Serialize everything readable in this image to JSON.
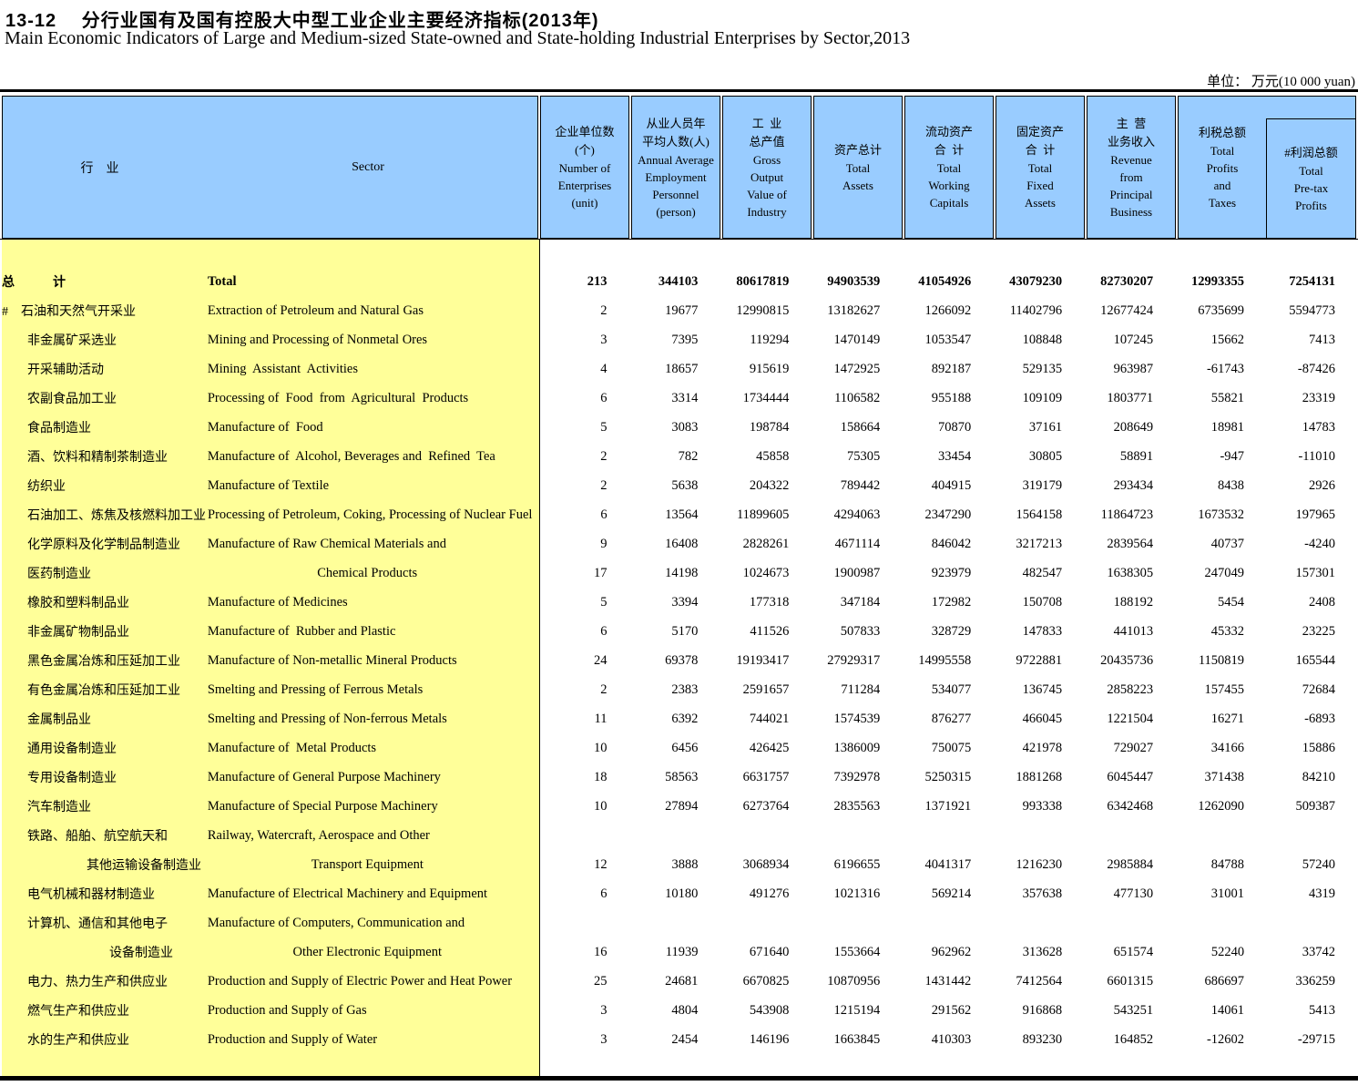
{
  "title": {
    "zh": "13-12　 分行业国有及国有控股大中型工业企业主要经济指标(2013年)",
    "en": "Main Economic Indicators of Large and Medium-sized State-owned and State-holding Industrial Enterprises by Sector,2013"
  },
  "unit_note": "单位： 万元(10 000 yuan)",
  "colors": {
    "header_bg": "#99CCFF",
    "sector_bg": "#FFFF99",
    "border": "#000000"
  },
  "header": {
    "sector": {
      "zh": "行　业",
      "en": "Sector"
    },
    "columns": [
      {
        "zh": [
          "企业单位数",
          "(个)"
        ],
        "en": [
          "Number of",
          "Enterprises",
          "(unit)"
        ]
      },
      {
        "zh": [
          "从业人员年",
          "平均人数(人)"
        ],
        "en": [
          "Annual Average",
          "Employment",
          "Personnel",
          "(person)"
        ]
      },
      {
        "zh": [
          "工  业",
          "总产值"
        ],
        "en": [
          "Gross",
          "Output",
          "Value of",
          "Industry"
        ]
      },
      {
        "zh": [
          "资产总计"
        ],
        "en": [
          "Total",
          "Assets"
        ]
      },
      {
        "zh": [
          "流动资产",
          "合  计"
        ],
        "en": [
          "Total",
          "Working",
          "Capitals"
        ]
      },
      {
        "zh": [
          "固定资产",
          "合  计"
        ],
        "en": [
          "Total",
          "Fixed",
          "Assets"
        ]
      },
      {
        "zh": [
          "主  营",
          "业务收入"
        ],
        "en": [
          "Revenue",
          "from",
          "Principal",
          "Business"
        ]
      },
      {
        "zh": [
          "利税总额"
        ],
        "en": [
          "Total",
          "Profits",
          "and",
          "Taxes"
        ]
      },
      {
        "zh": [
          "#利润总额"
        ],
        "en": [
          "Total",
          "Pre-tax",
          "Profits"
        ],
        "boxed": true
      }
    ]
  },
  "rows": [
    {
      "zh": "总　　　计",
      "en": "Total",
      "indent": 0,
      "bold": true,
      "values": [
        "213",
        "344103",
        "80617819",
        "94903539",
        "41054926",
        "43079230",
        "82730207",
        "12993355",
        "7254131"
      ]
    },
    {
      "zh": "#　石油和天然气开采业",
      "en": "Extraction of Petroleum and Natural Gas",
      "indent": 0,
      "values": [
        "2",
        "19677",
        "12990815",
        "13182627",
        "1266092",
        "11402796",
        "12677424",
        "6735699",
        "5594773"
      ]
    },
    {
      "zh": "非金属矿采选业",
      "en": "Mining and Processing of Nonmetal Ores",
      "indent": 1,
      "values": [
        "3",
        "7395",
        "119294",
        "1470149",
        "1053547",
        "108848",
        "107245",
        "15662",
        "7413"
      ]
    },
    {
      "zh": "开采辅助活动",
      "en": "Mining  Assistant  Activities",
      "indent": 1,
      "values": [
        "4",
        "18657",
        "915619",
        "1472925",
        "892187",
        "529135",
        "963987",
        "-61743",
        "-87426"
      ]
    },
    {
      "zh": "农副食品加工业",
      "en": "Processing of  Food  from  Agricultural  Products",
      "indent": 1,
      "values": [
        "6",
        "3314",
        "1734444",
        "1106582",
        "955188",
        "109109",
        "1803771",
        "55821",
        "23319"
      ]
    },
    {
      "zh": "食品制造业",
      "en": "Manufacture of  Food",
      "indent": 1,
      "values": [
        "5",
        "3083",
        "198784",
        "158664",
        "70870",
        "37161",
        "208649",
        "18981",
        "14783"
      ]
    },
    {
      "zh": "酒、饮料和精制茶制造业",
      "en": "Manufacture of  Alcohol, Beverages and  Refined  Tea",
      "indent": 1,
      "values": [
        "2",
        "782",
        "45858",
        "75305",
        "33454",
        "30805",
        "58891",
        "-947",
        "-11010"
      ]
    },
    {
      "zh": "纺织业",
      "en": "Manufacture of Textile",
      "indent": 1,
      "values": [
        "2",
        "5638",
        "204322",
        "789442",
        "404915",
        "319179",
        "293434",
        "8438",
        "2926"
      ]
    },
    {
      "zh": "石油加工、炼焦及核燃料加工业",
      "en": "Processing of Petroleum, Coking, Processing of Nuclear Fuel",
      "indent": 1,
      "values": [
        "6",
        "13564",
        "11899605",
        "4294063",
        "2347290",
        "1564158",
        "11864723",
        "1673532",
        "197965"
      ]
    },
    {
      "zh": "化学原料及化学制品制造业",
      "en": "Manufacture of Raw Chemical Materials and",
      "indent": 1,
      "values": [
        "9",
        "16408",
        "2828261",
        "4671114",
        "846042",
        "3217213",
        "2839564",
        "40737",
        "-4240"
      ]
    },
    {
      "zh": "医药制造业",
      "en": "Chemical Products",
      "indent": 1,
      "center_en": true,
      "values": [
        "17",
        "14198",
        "1024673",
        "1900987",
        "923979",
        "482547",
        "1638305",
        "247049",
        "157301"
      ]
    },
    {
      "zh": "橡胶和塑料制品业",
      "en": "Manufacture of Medicines",
      "indent": 1,
      "values": [
        "5",
        "3394",
        "177318",
        "347184",
        "172982",
        "150708",
        "188192",
        "5454",
        "2408"
      ]
    },
    {
      "zh": "非金属矿物制品业",
      "en": "Manufacture of  Rubber and Plastic",
      "indent": 1,
      "values": [
        "6",
        "5170",
        "411526",
        "507833",
        "328729",
        "147833",
        "441013",
        "45332",
        "23225"
      ]
    },
    {
      "zh": "黑色金属冶炼和压延加工业",
      "en": "Manufacture of Non-metallic Mineral Products",
      "indent": 1,
      "values": [
        "24",
        "69378",
        "19193417",
        "27929317",
        "14995558",
        "9722881",
        "20435736",
        "1150819",
        "165544"
      ]
    },
    {
      "zh": "有色金属冶炼和压延加工业",
      "en": "Smelting and Pressing of Ferrous Metals",
      "indent": 1,
      "values": [
        "2",
        "2383",
        "2591657",
        "711284",
        "534077",
        "136745",
        "2858223",
        "157455",
        "72684"
      ]
    },
    {
      "zh": "金属制品业",
      "en": "Smelting and Pressing of Non-ferrous Metals",
      "indent": 1,
      "values": [
        "11",
        "6392",
        "744021",
        "1574539",
        "876277",
        "466045",
        "1221504",
        "16271",
        "-6893"
      ]
    },
    {
      "zh": "通用设备制造业",
      "en": "Manufacture of  Metal Products",
      "indent": 1,
      "values": [
        "10",
        "6456",
        "426425",
        "1386009",
        "750075",
        "421978",
        "729027",
        "34166",
        "15886"
      ]
    },
    {
      "zh": "专用设备制造业",
      "en": "Manufacture of General Purpose Machinery",
      "indent": 1,
      "values": [
        "18",
        "58563",
        "6631757",
        "7392978",
        "5250315",
        "1881268",
        "6045447",
        "371438",
        "84210"
      ]
    },
    {
      "zh": "汽车制造业",
      "en": "Manufacture of Special Purpose Machinery",
      "indent": 1,
      "values": [
        "10",
        "27894",
        "6273764",
        "2835563",
        "1371921",
        "993338",
        "6342468",
        "1262090",
        "509387"
      ]
    },
    {
      "zh": "铁路、船舶、航空航天和",
      "en": "Railway, Watercraft, Aerospace and Other",
      "indent": 1,
      "values": null
    },
    {
      "zh": "其他运输设备制造业",
      "en": "Transport Equipment",
      "indent": 2,
      "center_en": true,
      "values": [
        "12",
        "3888",
        "3068934",
        "6196655",
        "4041317",
        "1216230",
        "2985884",
        "84788",
        "57240"
      ]
    },
    {
      "zh": "电气机械和器材制造业",
      "en": "Manufacture of Electrical Machinery and Equipment",
      "indent": 1,
      "values": [
        "6",
        "10180",
        "491276",
        "1021316",
        "569214",
        "357638",
        "477130",
        "31001",
        "4319"
      ]
    },
    {
      "zh": "计算机、通信和其他电子",
      "en": "Manufacture of Computers, Communication and",
      "indent": 1,
      "values": null
    },
    {
      "zh": "设备制造业",
      "en": "Other Electronic Equipment",
      "indent": 3,
      "center_en": true,
      "values": [
        "16",
        "11939",
        "671640",
        "1553664",
        "962962",
        "313628",
        "651574",
        "52240",
        "33742"
      ]
    },
    {
      "zh": "电力、热力生产和供应业",
      "en": "Production and Supply of Electric Power and Heat Power",
      "indent": 1,
      "values": [
        "25",
        "24681",
        "6670825",
        "10870956",
        "1431442",
        "7412564",
        "6601315",
        "686697",
        "336259"
      ]
    },
    {
      "zh": "燃气生产和供应业",
      "en": "Production and Supply of Gas",
      "indent": 1,
      "values": [
        "3",
        "4804",
        "543908",
        "1215194",
        "291562",
        "916868",
        "543251",
        "14061",
        "5413"
      ]
    },
    {
      "zh": "水的生产和供应业",
      "en": "Production and Supply of Water",
      "indent": 1,
      "values": [
        "3",
        "2454",
        "146196",
        "1663845",
        "410303",
        "893230",
        "164852",
        "-12602",
        "-29715"
      ]
    }
  ]
}
